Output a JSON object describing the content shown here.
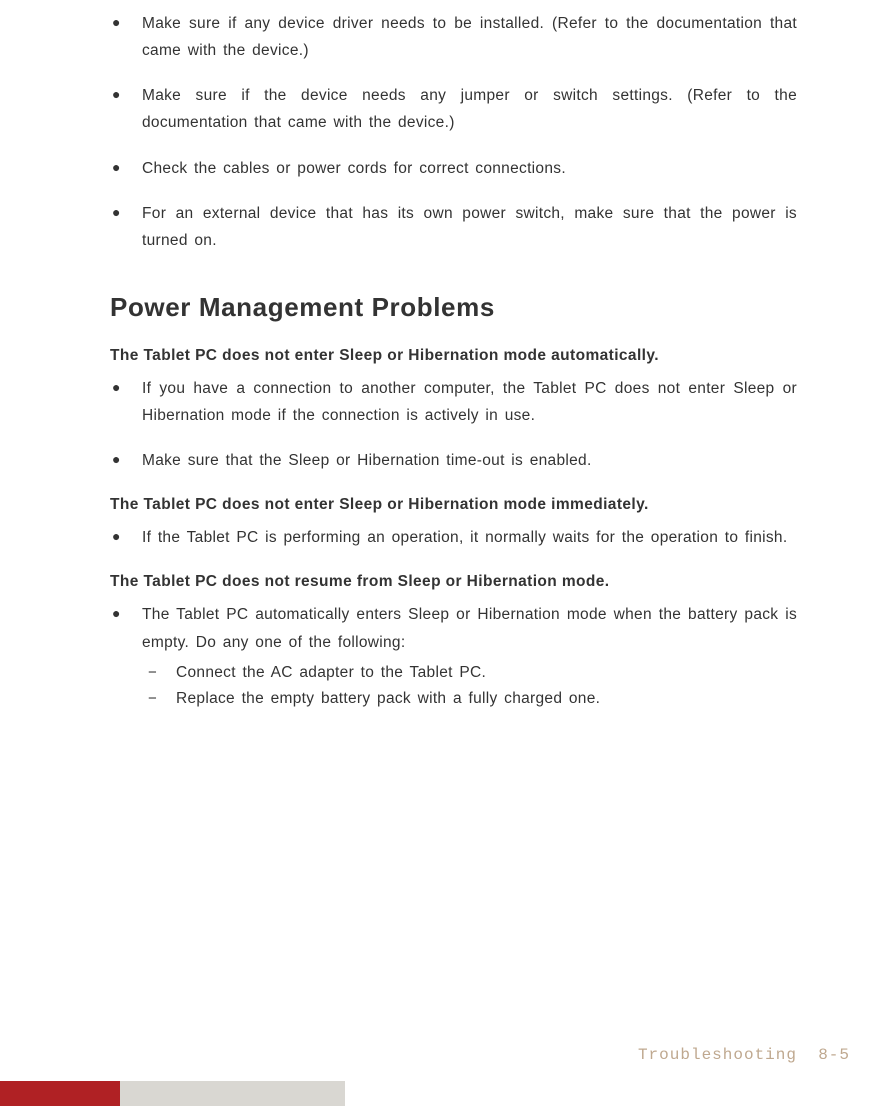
{
  "top_bullets": [
    "Make sure if any device driver needs to be installed. (Refer to the documentation that came with the device.)",
    "Make sure if the device needs any jumper or switch settings. (Refer to the documentation that came with the device.)",
    "Check the cables or power cords for correct connections.",
    "For an external device that has its own power switch, make sure that the power is turned on."
  ],
  "section_heading": "Power Management Problems",
  "groups": [
    {
      "heading": "The Tablet PC does not enter Sleep or Hibernation mode automatically.",
      "bullets": [
        {
          "text": "If you have a connection to another computer, the Tablet PC does not enter Sleep or Hibernation mode if the connection is actively in use."
        },
        {
          "text": "Make sure that the Sleep or Hibernation time-out is enabled."
        }
      ]
    },
    {
      "heading": "The Tablet PC does not enter Sleep or Hibernation mode immediately.",
      "bullets": [
        {
          "text": "If the Tablet PC is performing an operation, it normally waits for the operation to finish."
        }
      ]
    },
    {
      "heading": "The Tablet PC does not resume from Sleep or Hibernation mode.",
      "bullets": [
        {
          "text": "The Tablet PC automatically enters Sleep or Hibernation mode when the battery pack is empty. Do any one of the following:",
          "sub": [
            "Connect the AC adapter to the Tablet PC.",
            "Replace the empty battery pack with a fully charged one."
          ]
        }
      ]
    }
  ],
  "footer": {
    "section_label": "Troubleshooting",
    "page_number": "8-5",
    "colors": {
      "red": "#b02124",
      "gray": "#d9d7d2",
      "text": "#bfa88f"
    }
  }
}
